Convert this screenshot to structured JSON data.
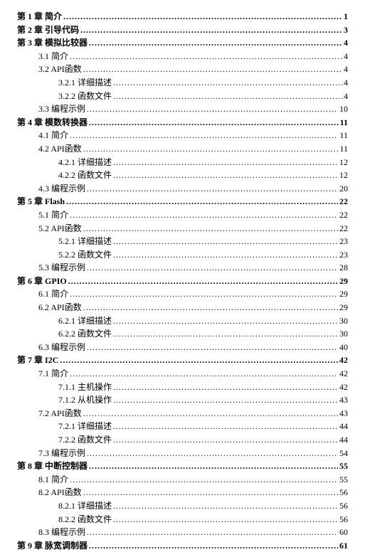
{
  "toc": [
    {
      "level": 0,
      "label": "第 1 章  简介",
      "page": "1"
    },
    {
      "level": 0,
      "label": "第 2 章  引导代码",
      "page": "3"
    },
    {
      "level": 0,
      "label": "第 3 章  模拟比较器",
      "page": "4"
    },
    {
      "level": 1,
      "label": "3.1  简介",
      "page": "4"
    },
    {
      "level": 1,
      "label": "3.2 API函数",
      "page": "4"
    },
    {
      "level": 2,
      "label": "3.2.1  详细描述",
      "page": "4"
    },
    {
      "level": 2,
      "label": "3.2.2  函数文件",
      "page": "4"
    },
    {
      "level": 1,
      "label": "3.3  编程示例",
      "page": "10"
    },
    {
      "level": 0,
      "label": "第 4 章  模数转换器",
      "page": "11"
    },
    {
      "level": 1,
      "label": "4.1  简介",
      "page": "11"
    },
    {
      "level": 1,
      "label": "4.2 API函数",
      "page": "11"
    },
    {
      "level": 2,
      "label": "4.2.1  详细描述",
      "page": "12"
    },
    {
      "level": 2,
      "label": "4.2.2  函数文件",
      "page": "12"
    },
    {
      "level": 1,
      "label": "4.3  编程示例",
      "page": "20"
    },
    {
      "level": 0,
      "label": "第 5 章  Flash",
      "page": "22"
    },
    {
      "level": 1,
      "label": "5.1  简介",
      "page": "22"
    },
    {
      "level": 1,
      "label": "5.2 API函数",
      "page": "22"
    },
    {
      "level": 2,
      "label": "5.2.1  详细描述",
      "page": "23"
    },
    {
      "level": 2,
      "label": "5.2.2  函数文件",
      "page": "23"
    },
    {
      "level": 1,
      "label": "5.3  编程示例",
      "page": "28"
    },
    {
      "level": 0,
      "label": "第 6 章  GPIO",
      "page": "29"
    },
    {
      "level": 1,
      "label": "6.1  简介",
      "page": "29"
    },
    {
      "level": 1,
      "label": "6.2 API函数",
      "page": "29"
    },
    {
      "level": 2,
      "label": "6.2.1  详细描述",
      "page": "30"
    },
    {
      "level": 2,
      "label": "6.2.2  函数文件",
      "page": "30"
    },
    {
      "level": 1,
      "label": "6.3  编程示例",
      "page": "40"
    },
    {
      "level": 0,
      "label": "第 7 章  I2C",
      "page": "42"
    },
    {
      "level": 1,
      "label": "7.1  简介",
      "page": "42"
    },
    {
      "level": 2,
      "label": "7.1.1  主机操作",
      "page": "42"
    },
    {
      "level": 2,
      "label": "7.1.2  从机操作",
      "page": "43"
    },
    {
      "level": 1,
      "label": "7.2 API函数",
      "page": "43"
    },
    {
      "level": 2,
      "label": "7.2.1  详细描述",
      "page": "44"
    },
    {
      "level": 2,
      "label": "7.2.2  函数文件",
      "page": "44"
    },
    {
      "level": 1,
      "label": "7.3  编程示例",
      "page": "54"
    },
    {
      "level": 0,
      "label": "第 8 章  中断控制器",
      "page": "55"
    },
    {
      "level": 1,
      "label": "8.1  简介",
      "page": "55"
    },
    {
      "level": 1,
      "label": "8.2 API函数",
      "page": "56"
    },
    {
      "level": 2,
      "label": "8.2.1  详细描述",
      "page": "56"
    },
    {
      "level": 2,
      "label": "8.2.2  函数文件",
      "page": "56"
    },
    {
      "level": 1,
      "label": "8.3  编程示例",
      "page": "60"
    },
    {
      "level": 0,
      "label": "第 9 章  脉宽调制器",
      "page": "61"
    }
  ]
}
